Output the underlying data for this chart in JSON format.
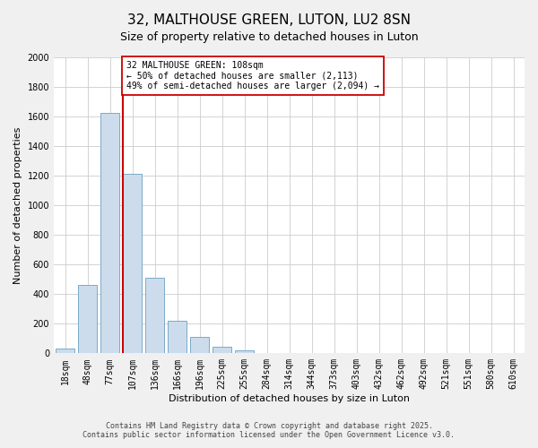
{
  "title": "32, MALTHOUSE GREEN, LUTON, LU2 8SN",
  "subtitle": "Size of property relative to detached houses in Luton",
  "xlabel": "Distribution of detached houses by size in Luton",
  "ylabel": "Number of detached properties",
  "categories": [
    "18sqm",
    "48sqm",
    "77sqm",
    "107sqm",
    "136sqm",
    "166sqm",
    "196sqm",
    "225sqm",
    "255sqm",
    "284sqm",
    "314sqm",
    "344sqm",
    "373sqm",
    "403sqm",
    "432sqm",
    "462sqm",
    "492sqm",
    "521sqm",
    "551sqm",
    "580sqm",
    "610sqm"
  ],
  "values": [
    35,
    460,
    1625,
    1210,
    510,
    220,
    110,
    45,
    20,
    5,
    0,
    0,
    0,
    0,
    0,
    0,
    0,
    0,
    0,
    0,
    0
  ],
  "bar_color": "#ccdcec",
  "bar_edge_color": "#7aaac8",
  "vline_index": 3,
  "vline_color": "#cc0000",
  "annotation_text": "32 MALTHOUSE GREEN: 108sqm\n← 50% of detached houses are smaller (2,113)\n49% of semi-detached houses are larger (2,094) →",
  "annotation_box_color": "#ffffff",
  "annotation_box_edge_color": "#cc0000",
  "ylim": [
    0,
    2000
  ],
  "yticks": [
    0,
    200,
    400,
    600,
    800,
    1000,
    1200,
    1400,
    1600,
    1800,
    2000
  ],
  "footnote1": "Contains HM Land Registry data © Crown copyright and database right 2025.",
  "footnote2": "Contains public sector information licensed under the Open Government Licence v3.0.",
  "background_color": "#f0f0f0",
  "plot_background_color": "#ffffff",
  "title_fontsize": 11,
  "subtitle_fontsize": 9,
  "axis_label_fontsize": 8,
  "tick_fontsize": 7,
  "annotation_fontsize": 7,
  "footnote_fontsize": 6
}
